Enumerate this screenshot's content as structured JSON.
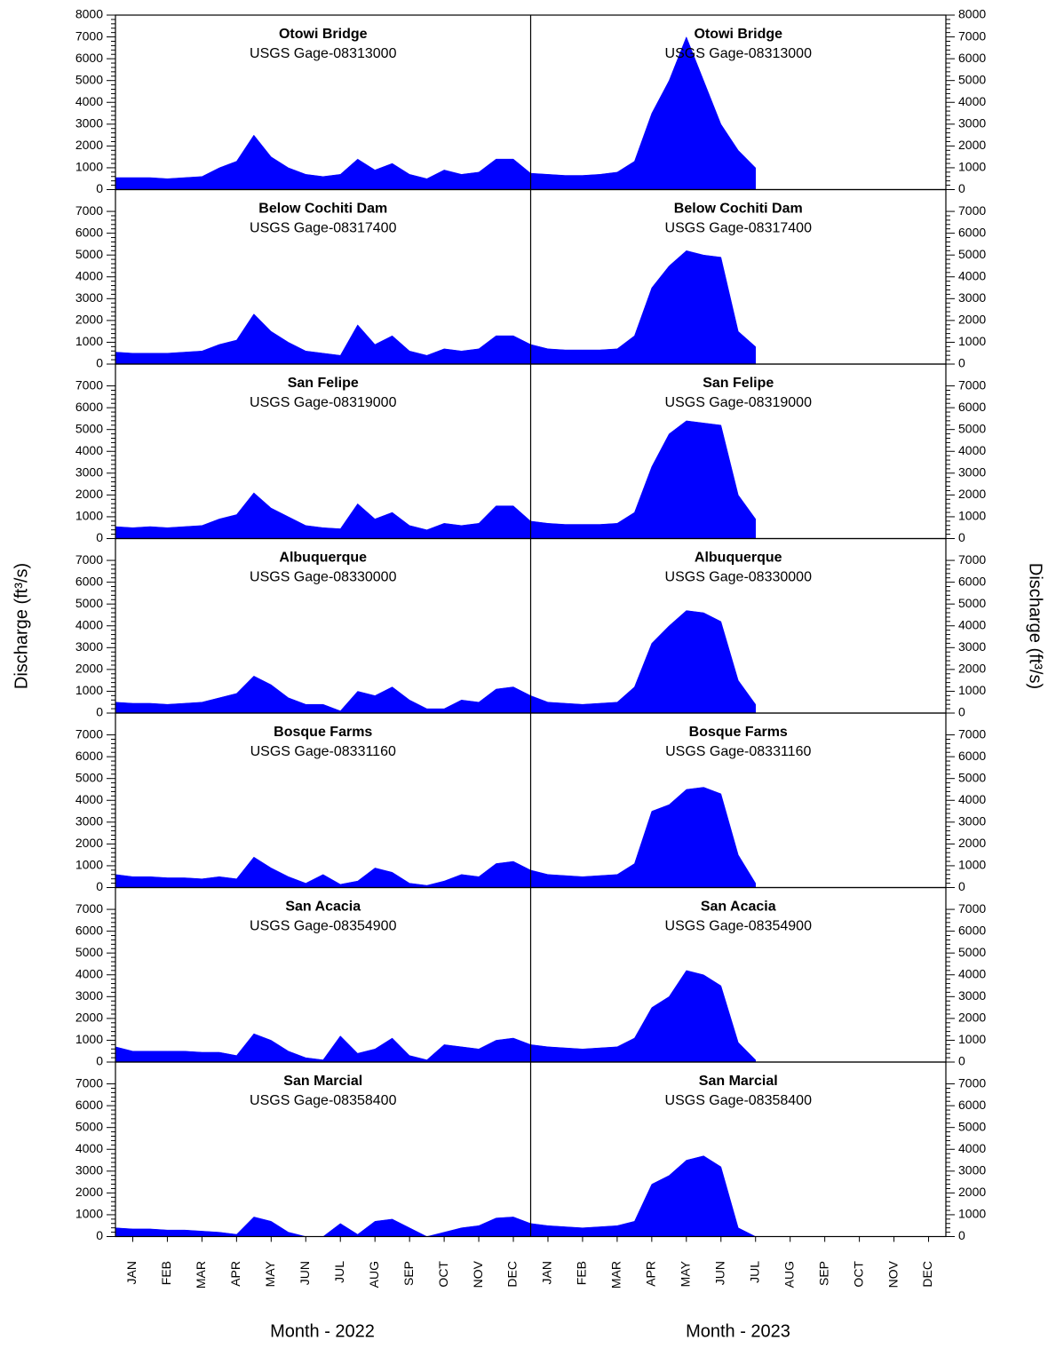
{
  "axes": {
    "xlim": [
      0,
      24
    ],
    "xticks": [
      {
        "value": 0.5,
        "label": "JAN"
      },
      {
        "value": 1.5,
        "label": "FEB"
      },
      {
        "value": 2.5,
        "label": "MAR"
      },
      {
        "value": 3.5,
        "label": "APR"
      },
      {
        "value": 4.5,
        "label": "MAY"
      },
      {
        "value": 5.5,
        "label": "JUN"
      },
      {
        "value": 6.5,
        "label": "JUL"
      },
      {
        "value": 7.5,
        "label": "AUG"
      },
      {
        "value": 8.5,
        "label": "SEP"
      },
      {
        "value": 9.5,
        "label": "OCT"
      },
      {
        "value": 10.5,
        "label": "NOV"
      },
      {
        "value": 11.5,
        "label": "DEC"
      },
      {
        "value": 12.5,
        "label": "JAN"
      },
      {
        "value": 13.5,
        "label": "FEB"
      },
      {
        "value": 14.5,
        "label": "MAR"
      },
      {
        "value": 15.5,
        "label": "APR"
      },
      {
        "value": 16.5,
        "label": "MAY"
      },
      {
        "value": 17.5,
        "label": "JUN"
      },
      {
        "value": 18.5,
        "label": "JUL"
      },
      {
        "value": 19.5,
        "label": "AUG"
      },
      {
        "value": 20.5,
        "label": "SEP"
      },
      {
        "value": 21.5,
        "label": "OCT"
      },
      {
        "value": 22.5,
        "label": "NOV"
      },
      {
        "value": 23.5,
        "label": "DEC"
      }
    ],
    "x_labels": [
      "Month - 2022",
      "Month - 2023"
    ],
    "y_label": "Discharge (ft³/s)",
    "y2_label": "Discharge (ft³/s)"
  },
  "chart_data": [
    {
      "type": "area",
      "title": "Otowi Bridge",
      "subtitle": "USGS Gage-08313000",
      "color": "#0000ff",
      "ylim": [
        0,
        8000
      ],
      "yticks": [
        0,
        1000,
        2000,
        3000,
        4000,
        5000,
        6000,
        7000,
        8000
      ],
      "x": [
        0,
        0.5,
        1,
        1.5,
        2,
        2.5,
        3,
        3.5,
        4,
        4.5,
        5,
        5.5,
        6,
        6.5,
        7,
        7.5,
        8,
        8.5,
        9,
        9.5,
        10,
        10.5,
        11,
        11.5,
        12,
        12.5,
        13,
        13.5,
        14,
        14.5,
        15,
        15.5,
        16,
        16.5,
        17,
        17.5,
        18,
        18.5
      ],
      "values": [
        550,
        550,
        550,
        500,
        550,
        600,
        1000,
        1300,
        2500,
        1500,
        1000,
        700,
        600,
        700,
        1400,
        900,
        1200,
        700,
        500,
        900,
        700,
        800,
        1400,
        1400,
        750,
        700,
        650,
        650,
        700,
        800,
        1300,
        3500,
        5000,
        7000,
        5000,
        3000,
        1800,
        1000
      ]
    },
    {
      "type": "area",
      "title": "Below Cochiti Dam",
      "subtitle": "USGS Gage-08317400",
      "color": "#0000ff",
      "ylim": [
        0,
        8000
      ],
      "yticks": [
        0,
        1000,
        2000,
        3000,
        4000,
        5000,
        6000,
        7000
      ],
      "x": [
        0,
        0.5,
        1,
        1.5,
        2,
        2.5,
        3,
        3.5,
        4,
        4.5,
        5,
        5.5,
        6,
        6.5,
        7,
        7.5,
        8,
        8.5,
        9,
        9.5,
        10,
        10.5,
        11,
        11.5,
        12,
        12.5,
        13,
        13.5,
        14,
        14.5,
        15,
        15.5,
        16,
        16.5,
        17,
        17.5,
        18,
        18.5
      ],
      "values": [
        550,
        500,
        500,
        500,
        550,
        600,
        900,
        1100,
        2300,
        1500,
        1000,
        600,
        500,
        400,
        1800,
        900,
        1300,
        600,
        400,
        700,
        600,
        700,
        1300,
        1300,
        900,
        700,
        650,
        650,
        650,
        700,
        1300,
        3500,
        4500,
        5200,
        5000,
        4900,
        1500,
        800
      ]
    },
    {
      "type": "area",
      "title": "San Felipe",
      "subtitle": "USGS Gage-08319000",
      "color": "#0000ff",
      "ylim": [
        0,
        8000
      ],
      "yticks": [
        0,
        1000,
        2000,
        3000,
        4000,
        5000,
        6000,
        7000
      ],
      "x": [
        0,
        0.5,
        1,
        1.5,
        2,
        2.5,
        3,
        3.5,
        4,
        4.5,
        5,
        5.5,
        6,
        6.5,
        7,
        7.5,
        8,
        8.5,
        9,
        9.5,
        10,
        10.5,
        11,
        11.5,
        12,
        12.5,
        13,
        13.5,
        14,
        14.5,
        15,
        15.5,
        16,
        16.5,
        17,
        17.5,
        18,
        18.5
      ],
      "values": [
        550,
        500,
        550,
        500,
        550,
        600,
        900,
        1100,
        2100,
        1400,
        1000,
        600,
        500,
        450,
        1600,
        900,
        1200,
        600,
        400,
        700,
        600,
        700,
        1500,
        1500,
        800,
        700,
        650,
        650,
        650,
        700,
        1200,
        3300,
        4800,
        5400,
        5300,
        5200,
        2000,
        900
      ]
    },
    {
      "type": "area",
      "title": "Albuquerque",
      "subtitle": "USGS Gage-08330000",
      "color": "#0000ff",
      "ylim": [
        0,
        8000
      ],
      "yticks": [
        0,
        1000,
        2000,
        3000,
        4000,
        5000,
        6000,
        7000
      ],
      "x": [
        0,
        0.5,
        1,
        1.5,
        2,
        2.5,
        3,
        3.5,
        4,
        4.5,
        5,
        5.5,
        6,
        6.5,
        7,
        7.5,
        8,
        8.5,
        9,
        9.5,
        10,
        10.5,
        11,
        11.5,
        12,
        12.5,
        13,
        13.5,
        14,
        14.5,
        15,
        15.5,
        16,
        16.5,
        17,
        17.5,
        18,
        18.5
      ],
      "values": [
        500,
        450,
        450,
        400,
        450,
        500,
        700,
        900,
        1700,
        1300,
        700,
        400,
        400,
        100,
        1000,
        800,
        1200,
        600,
        200,
        200,
        600,
        500,
        1100,
        1200,
        800,
        500,
        450,
        400,
        450,
        500,
        1200,
        3200,
        4000,
        4700,
        4600,
        4200,
        1500,
        400
      ]
    },
    {
      "type": "area",
      "title": "Bosque Farms",
      "subtitle": "USGS Gage-08331160",
      "color": "#0000ff",
      "ylim": [
        0,
        8000
      ],
      "yticks": [
        0,
        1000,
        2000,
        3000,
        4000,
        5000,
        6000,
        7000
      ],
      "x": [
        0,
        0.5,
        1,
        1.5,
        2,
        2.5,
        3,
        3.5,
        4,
        4.5,
        5,
        5.5,
        6,
        6.5,
        7,
        7.5,
        8,
        8.5,
        9,
        9.5,
        10,
        10.5,
        11,
        11.5,
        12,
        12.5,
        13,
        13.5,
        14,
        14.5,
        15,
        15.5,
        16,
        16.5,
        17,
        17.5,
        18,
        18.5
      ],
      "values": [
        600,
        500,
        500,
        450,
        450,
        400,
        500,
        400,
        1400,
        900,
        500,
        200,
        600,
        150,
        300,
        900,
        700,
        200,
        100,
        300,
        600,
        500,
        1100,
        1200,
        800,
        600,
        550,
        500,
        550,
        600,
        1100,
        3500,
        3800,
        4500,
        4600,
        4300,
        1500,
        200
      ]
    },
    {
      "type": "area",
      "title": "San Acacia",
      "subtitle": "USGS Gage-08354900",
      "color": "#0000ff",
      "ylim": [
        0,
        8000
      ],
      "yticks": [
        0,
        1000,
        2000,
        3000,
        4000,
        5000,
        6000,
        7000
      ],
      "x": [
        0,
        0.5,
        1,
        1.5,
        2,
        2.5,
        3,
        3.5,
        4,
        4.5,
        5,
        5.5,
        6,
        6.5,
        7,
        7.5,
        8,
        8.5,
        9,
        9.5,
        10,
        10.5,
        11,
        11.5,
        12,
        12.5,
        13,
        13.5,
        14,
        14.5,
        15,
        15.5,
        16,
        16.5,
        17,
        17.5,
        18,
        18.5
      ],
      "values": [
        700,
        500,
        500,
        500,
        500,
        450,
        450,
        300,
        1300,
        1000,
        500,
        200,
        100,
        1200,
        400,
        600,
        1100,
        300,
        100,
        800,
        700,
        600,
        1000,
        1100,
        800,
        700,
        650,
        600,
        650,
        700,
        1100,
        2500,
        3000,
        4200,
        4000,
        3500,
        900,
        100
      ]
    },
    {
      "type": "area",
      "title": "San Marcial",
      "subtitle": "USGS Gage-08358400",
      "color": "#0000ff",
      "ylim": [
        0,
        8000
      ],
      "yticks": [
        0,
        1000,
        2000,
        3000,
        4000,
        5000,
        6000,
        7000
      ],
      "x": [
        0,
        0.5,
        1,
        1.5,
        2,
        2.5,
        3,
        3.5,
        4,
        4.5,
        5,
        5.5,
        6,
        6.5,
        7,
        7.5,
        8,
        8.5,
        9,
        9.5,
        10,
        10.5,
        11,
        11.5,
        12,
        12.5,
        13,
        13.5,
        14,
        14.5,
        15,
        15.5,
        16,
        16.5,
        17,
        17.5,
        18,
        18.5
      ],
      "values": [
        400,
        350,
        350,
        300,
        300,
        250,
        200,
        100,
        900,
        700,
        200,
        0,
        0,
        600,
        100,
        700,
        800,
        400,
        0,
        200,
        400,
        500,
        850,
        900,
        600,
        500,
        450,
        400,
        450,
        500,
        700,
        2400,
        2800,
        3500,
        3700,
        3200,
        400,
        0
      ]
    }
  ]
}
